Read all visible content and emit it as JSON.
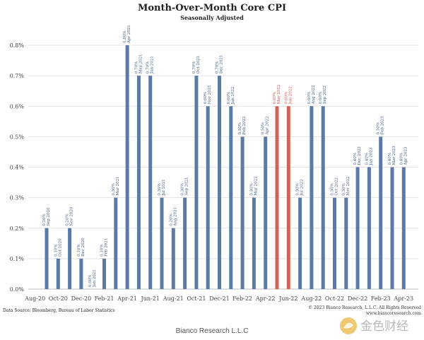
{
  "chart_data": {
    "type": "bar",
    "title": "Month-Over-Month Core CPI",
    "subtitle": "Seasonally Adjusted",
    "ylim": [
      0,
      0.8
    ],
    "y_ticks": [
      "0.0%",
      "0.1%",
      "0.2%",
      "0.3%",
      "0.4%",
      "0.5%",
      "0.6%",
      "0.7%",
      "0.8%"
    ],
    "x_ticks": [
      "Aug-20",
      "Oct-20",
      "Dec-20",
      "Feb-21",
      "Apr-21",
      "Jun-21",
      "Aug-21",
      "Oct-21",
      "Dec-21",
      "Feb-22",
      "Apr-22",
      "Jun-22",
      "Aug-22",
      "Oct-22",
      "Dec-22",
      "Feb-23",
      "Apr-23"
    ],
    "bars": [
      {
        "date": "Sep 2020",
        "value": 0.2,
        "label": "0.20%",
        "highlight": false
      },
      {
        "date": "Oct 2020",
        "value": 0.1,
        "label": "0.10%",
        "highlight": false
      },
      {
        "date": "Nov 2020",
        "value": 0.2,
        "label": "0.20%",
        "highlight": false
      },
      {
        "date": "Dec 2020",
        "value": 0.1,
        "label": "0.10%",
        "highlight": false
      },
      {
        "date": "Jan 2021",
        "value": 0.0,
        "label": "0.00%",
        "highlight": false
      },
      {
        "date": "Feb 2021",
        "value": 0.1,
        "label": "0.10%",
        "highlight": false
      },
      {
        "date": "Mar 2021",
        "value": 0.3,
        "label": "0.30%",
        "highlight": false
      },
      {
        "date": "Apr 2021",
        "value": 0.8,
        "label": "0.80%",
        "highlight": false
      },
      {
        "date": "May 2021",
        "value": 0.7,
        "label": "0.70%",
        "highlight": false
      },
      {
        "date": "Jun 2021",
        "value": 0.7,
        "label": "0.70%",
        "highlight": false
      },
      {
        "date": "Jul 2021",
        "value": 0.3,
        "label": "0.30%",
        "highlight": false
      },
      {
        "date": "Aug 2021",
        "value": 0.2,
        "label": "0.20%",
        "highlight": false
      },
      {
        "date": "Sep 2021",
        "value": 0.3,
        "label": "0.30%",
        "highlight": false
      },
      {
        "date": "Oct 2021",
        "value": 0.7,
        "label": "0.70%",
        "highlight": false
      },
      {
        "date": "Nov 2021",
        "value": 0.6,
        "label": "0.60%",
        "highlight": false
      },
      {
        "date": "Dec 2021",
        "value": 0.7,
        "label": "0.70%",
        "highlight": false
      },
      {
        "date": "Jan 2022",
        "value": 0.6,
        "label": "0.60%",
        "highlight": false
      },
      {
        "date": "Feb 2022",
        "value": 0.5,
        "label": "0.50%",
        "highlight": false
      },
      {
        "date": "Mar 2022",
        "value": 0.3,
        "label": "0.30%",
        "highlight": false
      },
      {
        "date": "Apr 2022",
        "value": 0.5,
        "label": "0.50%",
        "highlight": false
      },
      {
        "date": "May 2022",
        "value": 0.6,
        "label": "0.60%",
        "highlight": true
      },
      {
        "date": "Jun 2022",
        "value": 0.6,
        "label": "0.60%",
        "highlight": true
      },
      {
        "date": "Jul 2022",
        "value": 0.3,
        "label": "0.30%",
        "highlight": false
      },
      {
        "date": "Aug 2022",
        "value": 0.6,
        "label": "0.60%",
        "highlight": false
      },
      {
        "date": "Sep 2022",
        "value": 0.6,
        "label": "0.60%",
        "highlight": false
      },
      {
        "date": "Oct 2022",
        "value": 0.3,
        "label": "0.30%",
        "highlight": false
      },
      {
        "date": "Nov 2022",
        "value": 0.3,
        "label": "0.30%",
        "highlight": false
      },
      {
        "date": "Dec 2022",
        "value": 0.4,
        "label": "0.40%",
        "highlight": false
      },
      {
        "date": "Jan 2023",
        "value": 0.4,
        "label": "0.40%",
        "highlight": false
      },
      {
        "date": "Feb 2023",
        "value": 0.5,
        "label": "0.50%",
        "highlight": false
      },
      {
        "date": "Mar 2023",
        "value": 0.4,
        "label": "0.40%",
        "highlight": false
      },
      {
        "date": "Apr 2023",
        "value": 0.4,
        "label": "0.40%",
        "highlight": false
      }
    ],
    "colors": {
      "bar": "#5b7aa6",
      "highlight_bar": "#d0615b",
      "label": "#3d5a86",
      "highlight_label": "#c8504a",
      "grid": "#e3e3e3"
    }
  },
  "data_source": "Data Source: Bloomberg, Bureau of Labor Statistics",
  "copyright": "© 2023 Bianco Research, L.L.C. All Rights Reserved",
  "website": "www.biancoresearch.com",
  "footer": "Bianco Research L.L.C",
  "watermark_text": "金色财经"
}
